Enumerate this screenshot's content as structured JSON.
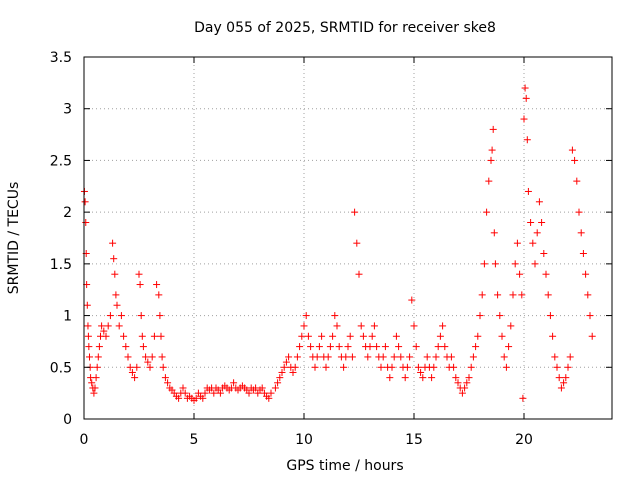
{
  "chart_data": {
    "type": "scatter",
    "title": "Day 055 of 2025, SRMTID for receiver ske8",
    "xlabel": "GPS time / hours",
    "ylabel": "SRMTID / TECUs",
    "xlim": [
      0,
      24
    ],
    "ylim": [
      0,
      3.5
    ],
    "xticks": [
      0,
      5,
      10,
      15,
      20
    ],
    "yticks": [
      0,
      0.5,
      1,
      1.5,
      2,
      2.5,
      3,
      3.5
    ],
    "xtick_labels": [
      "0",
      "5",
      "10",
      "15",
      "20"
    ],
    "ytick_labels": [
      "0",
      "0.5",
      "1",
      "1.5",
      "2",
      "2.5",
      "3",
      "3.5"
    ],
    "grid": true,
    "marker": "+",
    "series": [
      {
        "name": "SRMTID",
        "color": "#ff0000",
        "x": [
          0.02,
          0.05,
          0.08,
          0.1,
          0.12,
          0.15,
          0.18,
          0.2,
          0.22,
          0.25,
          0.28,
          0.3,
          0.35,
          0.4,
          0.45,
          0.5,
          0.55,
          0.6,
          0.65,
          0.7,
          0.75,
          0.8,
          0.9,
          1.0,
          1.1,
          1.2,
          1.3,
          1.35,
          1.4,
          1.45,
          1.5,
          1.6,
          1.7,
          1.8,
          1.9,
          2.0,
          2.1,
          2.2,
          2.3,
          2.4,
          2.5,
          2.55,
          2.6,
          2.65,
          2.7,
          2.8,
          2.9,
          3.0,
          3.1,
          3.2,
          3.3,
          3.4,
          3.45,
          3.5,
          3.55,
          3.6,
          3.7,
          3.8,
          3.9,
          4.0,
          4.1,
          4.2,
          4.3,
          4.4,
          4.5,
          4.6,
          4.7,
          4.8,
          4.9,
          5.0,
          5.1,
          5.2,
          5.3,
          5.4,
          5.5,
          5.6,
          5.7,
          5.8,
          5.9,
          6.0,
          6.1,
          6.2,
          6.3,
          6.4,
          6.5,
          6.6,
          6.7,
          6.8,
          6.9,
          7.0,
          7.1,
          7.2,
          7.3,
          7.4,
          7.5,
          7.6,
          7.7,
          7.8,
          7.9,
          8.0,
          8.1,
          8.2,
          8.3,
          8.4,
          8.5,
          8.7,
          8.8,
          8.9,
          9.0,
          9.1,
          9.2,
          9.3,
          9.4,
          9.5,
          9.6,
          9.7,
          9.8,
          9.9,
          10.0,
          10.1,
          10.2,
          10.3,
          10.4,
          10.5,
          10.6,
          10.7,
          10.8,
          10.9,
          11.0,
          11.1,
          11.2,
          11.3,
          11.4,
          11.5,
          11.6,
          11.7,
          11.8,
          11.9,
          12.0,
          12.1,
          12.2,
          12.3,
          12.4,
          12.5,
          12.6,
          12.7,
          12.8,
          12.9,
          13.0,
          13.1,
          13.2,
          13.3,
          13.4,
          13.5,
          13.6,
          13.7,
          13.8,
          13.9,
          14.0,
          14.1,
          14.2,
          14.3,
          14.4,
          14.5,
          14.6,
          14.7,
          14.8,
          14.9,
          15.0,
          15.1,
          15.2,
          15.3,
          15.4,
          15.5,
          15.6,
          15.7,
          15.8,
          15.9,
          16.0,
          16.1,
          16.2,
          16.3,
          16.4,
          16.5,
          16.6,
          16.7,
          16.8,
          16.9,
          17.0,
          17.1,
          17.2,
          17.3,
          17.4,
          17.5,
          17.6,
          17.7,
          17.8,
          17.9,
          18.0,
          18.1,
          18.2,
          18.3,
          18.4,
          18.5,
          18.55,
          18.6,
          18.65,
          18.7,
          18.8,
          18.9,
          19.0,
          19.1,
          19.2,
          19.3,
          19.4,
          19.5,
          19.6,
          19.7,
          19.8,
          19.9,
          19.95,
          20.0,
          20.05,
          20.1,
          20.15,
          20.2,
          20.3,
          20.4,
          20.5,
          20.6,
          20.7,
          20.8,
          20.9,
          21.0,
          21.1,
          21.2,
          21.3,
          21.4,
          21.5,
          21.6,
          21.7,
          21.8,
          21.9,
          22.0,
          22.1,
          22.2,
          22.3,
          22.4,
          22.5,
          22.6,
          22.7,
          22.8,
          22.9,
          23.0,
          23.1
        ],
        "y": [
          2.2,
          2.1,
          1.9,
          1.6,
          1.3,
          1.1,
          0.9,
          0.8,
          0.7,
          0.6,
          0.5,
          0.4,
          0.35,
          0.3,
          0.25,
          0.3,
          0.4,
          0.5,
          0.6,
          0.7,
          0.8,
          0.9,
          0.85,
          0.8,
          0.9,
          1.0,
          1.7,
          1.55,
          1.4,
          1.2,
          1.1,
          0.9,
          1.0,
          0.8,
          0.7,
          0.6,
          0.5,
          0.45,
          0.4,
          0.5,
          1.4,
          1.3,
          1.0,
          0.8,
          0.7,
          0.6,
          0.55,
          0.5,
          0.6,
          0.8,
          1.3,
          1.2,
          1.0,
          0.8,
          0.6,
          0.5,
          0.4,
          0.35,
          0.3,
          0.28,
          0.25,
          0.22,
          0.2,
          0.25,
          0.3,
          0.25,
          0.2,
          0.22,
          0.2,
          0.18,
          0.2,
          0.25,
          0.22,
          0.2,
          0.25,
          0.3,
          0.28,
          0.3,
          0.25,
          0.3,
          0.28,
          0.25,
          0.3,
          0.32,
          0.3,
          0.28,
          0.3,
          0.35,
          0.3,
          0.28,
          0.3,
          0.32,
          0.3,
          0.28,
          0.25,
          0.3,
          0.28,
          0.3,
          0.25,
          0.28,
          0.3,
          0.25,
          0.22,
          0.2,
          0.25,
          0.3,
          0.35,
          0.4,
          0.45,
          0.5,
          0.55,
          0.6,
          0.5,
          0.45,
          0.5,
          0.6,
          0.7,
          0.8,
          0.9,
          1.0,
          0.8,
          0.7,
          0.6,
          0.5,
          0.6,
          0.7,
          0.8,
          0.6,
          0.5,
          0.6,
          0.7,
          0.8,
          1.0,
          0.9,
          0.7,
          0.6,
          0.5,
          0.6,
          0.7,
          0.8,
          0.6,
          2.0,
          1.7,
          1.4,
          0.9,
          0.8,
          0.7,
          0.6,
          0.7,
          0.8,
          0.9,
          0.7,
          0.6,
          0.5,
          0.6,
          0.7,
          0.5,
          0.4,
          0.5,
          0.6,
          0.8,
          0.7,
          0.6,
          0.5,
          0.4,
          0.5,
          0.6,
          1.15,
          0.9,
          0.7,
          0.5,
          0.45,
          0.4,
          0.5,
          0.6,
          0.5,
          0.4,
          0.5,
          0.6,
          0.7,
          0.8,
          0.9,
          0.7,
          0.6,
          0.5,
          0.6,
          0.5,
          0.4,
          0.35,
          0.3,
          0.25,
          0.3,
          0.35,
          0.4,
          0.5,
          0.6,
          0.7,
          0.8,
          1.0,
          1.2,
          1.5,
          2.0,
          2.3,
          2.5,
          2.6,
          2.8,
          1.8,
          1.5,
          1.2,
          1.0,
          0.8,
          0.6,
          0.5,
          0.7,
          0.9,
          1.2,
          1.5,
          1.7,
          1.4,
          1.2,
          0.2,
          2.9,
          3.2,
          3.1,
          2.7,
          2.2,
          1.9,
          1.7,
          1.5,
          1.8,
          2.1,
          1.9,
          1.6,
          1.4,
          1.2,
          1.0,
          0.8,
          0.6,
          0.5,
          0.4,
          0.3,
          0.35,
          0.4,
          0.5,
          0.6,
          2.6,
          2.5,
          2.3,
          2.0,
          1.8,
          1.6,
          1.4,
          1.2,
          1.0,
          0.8
        ]
      }
    ]
  }
}
